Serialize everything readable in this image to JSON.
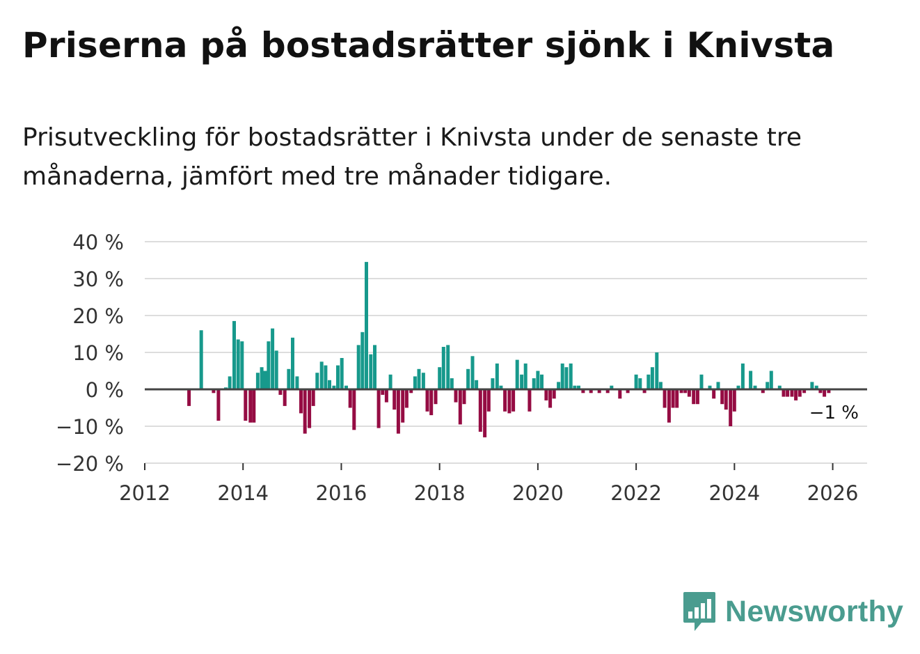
{
  "title": "Priserna på bostadsrätter sjönk i Knivsta",
  "subtitle": "Prisutveckling för bostadsrätter i Knivsta under de senaste tre månaderna, jämfört med tre månader tidigare.",
  "brand": {
    "name": "Newsworthy",
    "icon": "newsworthy-logo-icon",
    "color": "#4a9c8f"
  },
  "colors": {
    "positive": "#17998c",
    "negative": "#950c43",
    "grid": "#dddddd",
    "zero": "#444444"
  },
  "chart_data": {
    "type": "bar",
    "title": "Priserna på bostadsrätter sjönk i Knivsta",
    "xlabel": "",
    "ylabel": "",
    "ylim": [
      -20,
      40
    ],
    "xlim": [
      2012.0,
      2026.7
    ],
    "y_ticks": [
      40,
      30,
      20,
      10,
      0,
      -10,
      -20
    ],
    "y_tick_labels": [
      "40 %",
      "30 %",
      "20 %",
      "10 %",
      "0 %",
      "−10 %",
      "−20 %"
    ],
    "x_ticks": [
      2012,
      2014,
      2016,
      2018,
      2020,
      2022,
      2024,
      2026
    ],
    "x_tick_labels": [
      "2012",
      "2014",
      "2016",
      "2018",
      "2020",
      "2022",
      "2024",
      "2026"
    ],
    "last_value_label": "−1 %",
    "grid": true,
    "series": [
      {
        "name": "Prisutveckling",
        "x": [
          2012.9,
          2013.15,
          2013.4,
          2013.5,
          2013.65,
          2013.73,
          2013.82,
          2013.9,
          2013.98,
          2014.05,
          2014.15,
          2014.22,
          2014.3,
          2014.38,
          2014.45,
          2014.52,
          2014.6,
          2014.68,
          2014.76,
          2014.85,
          2014.93,
          2015.01,
          2015.1,
          2015.18,
          2015.26,
          2015.35,
          2015.43,
          2015.51,
          2015.6,
          2015.68,
          2015.76,
          2015.85,
          2015.93,
          2016.01,
          2016.1,
          2016.18,
          2016.26,
          2016.35,
          2016.43,
          2016.51,
          2016.6,
          2016.68,
          2016.76,
          2016.84,
          2016.92,
          2017.0,
          2017.08,
          2017.16,
          2017.25,
          2017.33,
          2017.42,
          2017.5,
          2017.58,
          2017.67,
          2017.75,
          2017.83,
          2017.92,
          2018.0,
          2018.08,
          2018.17,
          2018.25,
          2018.33,
          2018.42,
          2018.5,
          2018.58,
          2018.67,
          2018.75,
          2018.83,
          2018.92,
          2019.0,
          2019.08,
          2019.17,
          2019.25,
          2019.33,
          2019.42,
          2019.5,
          2019.58,
          2019.67,
          2019.75,
          2019.83,
          2019.92,
          2020.0,
          2020.08,
          2020.17,
          2020.25,
          2020.33,
          2020.42,
          2020.5,
          2020.58,
          2020.67,
          2020.75,
          2020.83,
          2020.92,
          2021.08,
          2021.25,
          2021.42,
          2021.5,
          2021.67,
          2021.83,
          2022.0,
          2022.08,
          2022.17,
          2022.25,
          2022.33,
          2022.42,
          2022.5,
          2022.58,
          2022.67,
          2022.75,
          2022.83,
          2022.92,
          2023.0,
          2023.08,
          2023.17,
          2023.25,
          2023.33,
          2023.5,
          2023.58,
          2023.67,
          2023.75,
          2023.83,
          2023.92,
          2024.0,
          2024.08,
          2024.17,
          2024.33,
          2024.42,
          2024.58,
          2024.67,
          2024.75,
          2024.92,
          2025.0,
          2025.08,
          2025.17,
          2025.25,
          2025.33,
          2025.42,
          2025.58,
          2025.67,
          2025.75,
          2025.83,
          2025.92
        ],
        "values": [
          -4.5,
          16,
          -1,
          -8.5,
          0.5,
          3.5,
          18.5,
          13.5,
          13,
          -8.5,
          -9,
          -9,
          4.5,
          6,
          5,
          13,
          16.5,
          10.5,
          -1.5,
          -4.5,
          5.5,
          14,
          3.5,
          -6.5,
          -12,
          -10.5,
          -4.5,
          4.5,
          7.5,
          6.5,
          2.5,
          1,
          6.5,
          8.5,
          1,
          -5,
          -11,
          12,
          15.5,
          34.5,
          9.5,
          12,
          -10.5,
          -1.5,
          -3.5,
          4,
          -5.5,
          -12,
          -9,
          -5,
          -1,
          3.5,
          5.5,
          4.5,
          -6,
          -7,
          -4,
          6,
          11.5,
          12,
          3,
          -3.5,
          -9.5,
          -4,
          5.5,
          9,
          2.5,
          -11.5,
          -13,
          -6,
          3,
          7,
          1,
          -6,
          -6.5,
          -6,
          8,
          4,
          7,
          -6,
          3,
          5,
          4,
          -3,
          -5,
          -2.5,
          2,
          7,
          6,
          7,
          1,
          1,
          -1,
          -1,
          -1,
          -1,
          1,
          -2.5,
          -1,
          4,
          3,
          -1,
          4,
          6,
          10,
          2,
          -5,
          -9,
          -5,
          -5,
          -1,
          -1,
          -2,
          -4,
          -4,
          4,
          1,
          -2.5,
          2,
          -4,
          -5.5,
          -10,
          -6,
          1,
          7,
          5,
          1,
          -1,
          2,
          5,
          1,
          -2,
          -2,
          -2,
          -3,
          -2,
          -1,
          2,
          1,
          -1,
          -2,
          -1
        ]
      }
    ]
  }
}
